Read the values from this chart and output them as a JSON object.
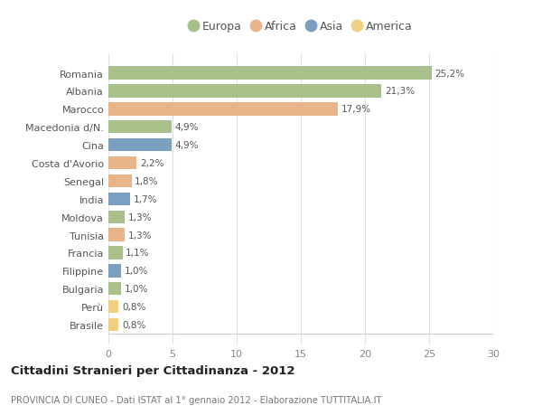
{
  "categories": [
    "Romania",
    "Albania",
    "Marocco",
    "Macedonia d/N.",
    "Cina",
    "Costa d'Avorio",
    "Senegal",
    "India",
    "Moldova",
    "Tunisia",
    "Francia",
    "Filippine",
    "Bulgaria",
    "Perù",
    "Brasile"
  ],
  "values": [
    25.2,
    21.3,
    17.9,
    4.9,
    4.9,
    2.2,
    1.8,
    1.7,
    1.3,
    1.3,
    1.1,
    1.0,
    1.0,
    0.8,
    0.8
  ],
  "labels": [
    "25,2%",
    "21,3%",
    "17,9%",
    "4,9%",
    "4,9%",
    "2,2%",
    "1,8%",
    "1,7%",
    "1,3%",
    "1,3%",
    "1,1%",
    "1,0%",
    "1,0%",
    "0,8%",
    "0,8%"
  ],
  "continent": [
    "Europa",
    "Europa",
    "Africa",
    "Europa",
    "Asia",
    "Africa",
    "Africa",
    "Asia",
    "Europa",
    "Africa",
    "Europa",
    "Asia",
    "Europa",
    "America",
    "America"
  ],
  "colors": {
    "Europa": "#a8c08a",
    "Africa": "#e8b48a",
    "Asia": "#7a9fc0",
    "America": "#f0d080"
  },
  "title": "Cittadini Stranieri per Cittadinanza - 2012",
  "subtitle": "PROVINCIA DI CUNEO - Dati ISTAT al 1° gennaio 2012 - Elaborazione TUTTITALIA.IT",
  "xlim": [
    0,
    30
  ],
  "xticks": [
    0,
    5,
    10,
    15,
    20,
    25,
    30
  ],
  "background_color": "#ffffff",
  "grid_color": "#e0e0e0",
  "bar_height": 0.72
}
